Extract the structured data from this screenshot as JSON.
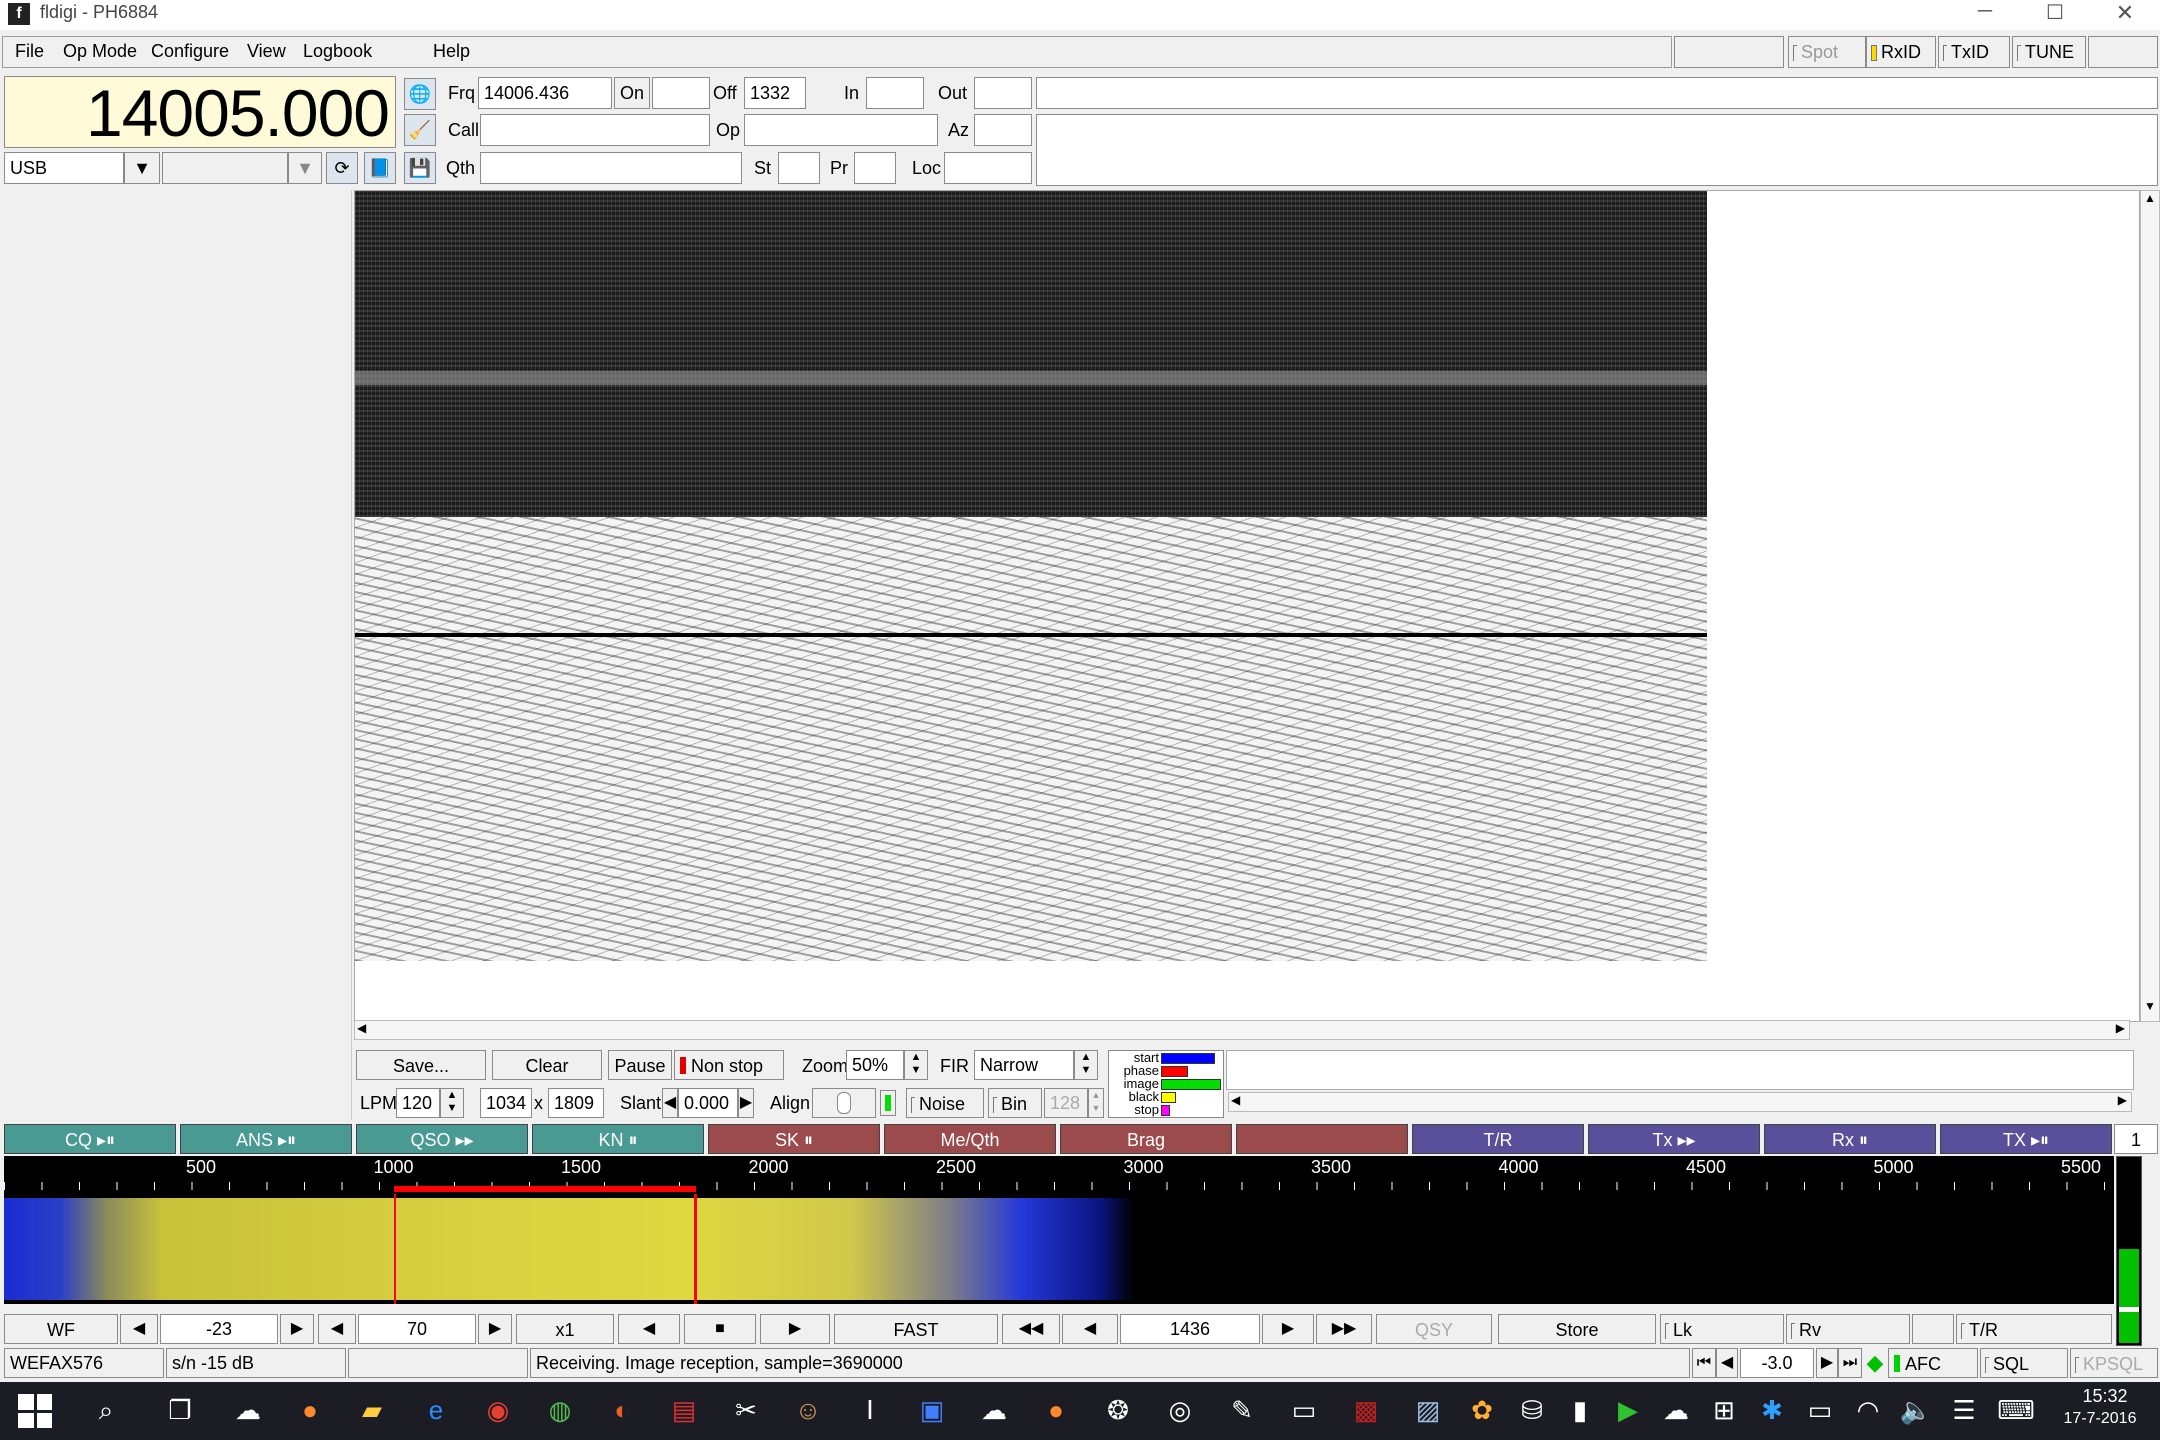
{
  "window": {
    "title": "fldigi - PH6884"
  },
  "menu": {
    "file": "File",
    "opmode": "Op Mode",
    "configure": "Configure",
    "view": "View",
    "logbook": "Logbook",
    "help": "Help"
  },
  "toolbar": {
    "spot": "Spot",
    "rxid": "RxID",
    "txid": "TxID",
    "tune": "TUNE"
  },
  "freq_display": "14005.000",
  "mode_select": "USB",
  "log": {
    "frq_label": "Frq",
    "frq_value": "14006.436",
    "on_label": "On",
    "off_label": "Off",
    "off_value": "1332",
    "in_label": "In",
    "out_label": "Out",
    "call_label": "Call",
    "op_label": "Op",
    "az_label": "Az",
    "qth_label": "Qth",
    "st_label": "St",
    "pr_label": "Pr",
    "loc_label": "Loc"
  },
  "wefax": {
    "save": "Save...",
    "clear": "Clear",
    "pause": "Pause",
    "nonstop": "Non stop",
    "zoom_label": "Zoom",
    "zoom_value": "50%",
    "fir_label": "FIR",
    "fir_value": "Narrow",
    "lpm_label": "LPM",
    "lpm_value": "120",
    "width": "1034",
    "x": "x",
    "height": "1809",
    "slant_label": "Slant",
    "slant_value": "0.000",
    "align_label": "Align",
    "noise": "Noise",
    "bin": "Bin",
    "bin_value": "128",
    "legend": [
      "start",
      "phase",
      "image",
      "black",
      "stop"
    ],
    "legend_colors": [
      "#0000ff",
      "#ff0000",
      "#00dd00",
      "#ffff00",
      "#ff00ff"
    ],
    "legend_levels": [
      0.9,
      0.45,
      1.0,
      0.25,
      0.15
    ]
  },
  "macros": [
    {
      "label": "CQ ▸⏸",
      "color": "#4a9a94"
    },
    {
      "label": "ANS ▸⏸",
      "color": "#4a9a94"
    },
    {
      "label": "QSO ▸▸",
      "color": "#4a9a94"
    },
    {
      "label": "KN ⏸",
      "color": "#4a9a94"
    },
    {
      "label": "SK ⏸",
      "color": "#9b4b4b"
    },
    {
      "label": "Me/Qth",
      "color": "#9b4b4b"
    },
    {
      "label": "Brag",
      "color": "#9b4b4b"
    },
    {
      "label": "",
      "color": "#9b4b4b"
    },
    {
      "label": "T/R",
      "color": "#5a4f9a"
    },
    {
      "label": "Tx ▸▸",
      "color": "#5a4f9a"
    },
    {
      "label": "Rx ⏸",
      "color": "#5a4f9a"
    },
    {
      "label": "TX ▸⏸",
      "color": "#5a4f9a"
    }
  ],
  "macro_page": "1",
  "scale_ticks": [
    "500",
    "1000",
    "1500",
    "2000",
    "2500",
    "3000",
    "3500",
    "4000",
    "4500",
    "5000",
    "5500"
  ],
  "wf_controls": {
    "wf": "WF",
    "ref": "-23",
    "range": "70",
    "zoom": "x1",
    "speed": "FAST",
    "carrier": "1436",
    "qsy": "QSY",
    "store": "Store",
    "lk": "Lk",
    "rv": "Rv",
    "tr": "T/R"
  },
  "status": {
    "mode": "WEFAX576",
    "sn": "s/n -15 dB",
    "message": "Receiving. Image reception, sample=3690000",
    "afc_value": "-3.0",
    "afc": "AFC",
    "sql": "SQL",
    "kpsql": "KPSQL"
  },
  "taskbar": {
    "time": "15:32",
    "date": "17-7-2016"
  }
}
